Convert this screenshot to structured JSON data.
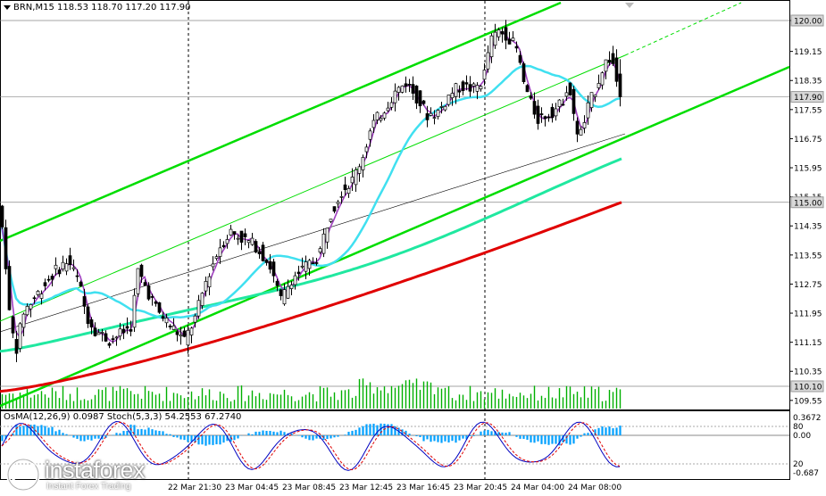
{
  "header": {
    "symbol": "BRN,M15",
    "values": "118.53 118.70 117.20 117.90"
  },
  "indicators": {
    "osma": "OsMA(12,26,9) 0.0987",
    "stoch": "Stoch(5,3,3) 54.2553 67.2740"
  },
  "watermark": {
    "name": "instaforex",
    "tagline": "Instant Forex Trading"
  },
  "colors": {
    "upper_channel": "#00dd00",
    "ma_fast": "#a040c0",
    "ma_cyan": "#40e0f0",
    "ma_teal": "#20e8a0",
    "ma_red": "#e00000",
    "volume": "#00b000",
    "osma": "#00a0ff",
    "stoch_main": "#0000c0",
    "stoch_signal": "#e00000"
  },
  "chart_data": [
    {
      "type": "candlestick",
      "symbol": "BRN",
      "timeframe": "M15",
      "ohlc_last": {
        "open": 118.53,
        "high": 118.7,
        "low": 117.2,
        "close": 117.9
      },
      "price_axis_ticks": [
        "120.00",
        "119.15",
        "118.35",
        "117.55",
        "116.75",
        "115.95",
        "115.15",
        "114.35",
        "113.55",
        "112.75",
        "111.95",
        "111.15",
        "110.35",
        "109.55"
      ],
      "highlighted_levels": [
        "120.00",
        "117.90",
        "115.00",
        "110.10"
      ],
      "time_axis_ticks": [
        "22 Mar 21:30",
        "23 Mar 04:45",
        "23 Mar 08:45",
        "23 Mar 12:45",
        "23 Mar 16:45",
        "23 Mar 20:45",
        "24 Mar 04:00",
        "24 Mar 08:00"
      ],
      "ylim": [
        109.55,
        120.3
      ],
      "moving_averages": [
        {
          "color": "purple",
          "end": 118.3
        },
        {
          "color": "cyan",
          "end": 117.9
        },
        {
          "color": "teal",
          "end": 116.05
        },
        {
          "color": "red",
          "end": 115.0
        }
      ]
    },
    {
      "type": "histogram",
      "name": "OsMA(12,26,9)",
      "value": 0.0987,
      "axis_ticks": [
        "0.3672",
        "80",
        "0.00",
        "20",
        "-0.687"
      ]
    },
    {
      "type": "line",
      "name": "Stoch(5,3,3)",
      "main": 54.2553,
      "signal": 67.274
    }
  ]
}
